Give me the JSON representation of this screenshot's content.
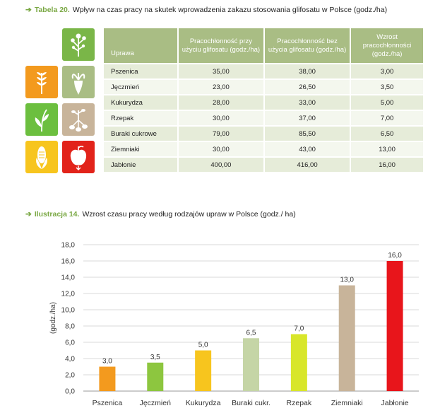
{
  "table_caption": {
    "arrow": "➔",
    "label": "Tabela 20.",
    "text": "Wpływ na czas pracy na skutek wprowadzenia zakazu stosowania glifosatu w Polsce (godz./ha)"
  },
  "table": {
    "headers": [
      "Uprawa",
      "Pracochłonność przy użyciu glifosatu (godz./ha)",
      "Pracochłonność bez użycia glifosatu (godz./ha)",
      "Wzrost pracochłonności (godz./ha)"
    ],
    "rows": [
      [
        "Pszenica",
        "35,00",
        "38,00",
        "3,00"
      ],
      [
        "Jęczmień",
        "23,00",
        "26,50",
        "3,50"
      ],
      [
        "Kukurydza",
        "28,00",
        "33,00",
        "5,00"
      ],
      [
        "Rzepak",
        "30,00",
        "37,00",
        "7,00"
      ],
      [
        "Buraki cukrowe",
        "79,00",
        "85,50",
        "6,50"
      ],
      [
        "Ziemniaki",
        "30,00",
        "43,00",
        "13,00"
      ],
      [
        "Jabłonie",
        "400,00",
        "416,00",
        "16,00"
      ]
    ]
  },
  "icons": [
    {
      "name": "rapeseed-plant-icon",
      "color": "#7ab648"
    },
    {
      "name": "wheat-icon",
      "color": "#f39a1e"
    },
    {
      "name": "sugar-beet-icon",
      "color": "#a9bd84"
    },
    {
      "name": "barley-icon",
      "color": "#6cbf3f"
    },
    {
      "name": "potato-plant-icon",
      "color": "#c8b49a"
    },
    {
      "name": "corn-icon",
      "color": "#f7c51e"
    },
    {
      "name": "apple-icon",
      "color": "#e2231a"
    }
  ],
  "chart_caption": {
    "arrow": "➔",
    "label": "Ilustracja 14.",
    "text": "Wzrost czasu pracy według rodzajów upraw w Polsce (godz./ ha)"
  },
  "chart_data": {
    "type": "bar",
    "categories": [
      "Pszenica",
      "Jęczmień",
      "Kukurydza",
      "Buraki cukr.",
      "Rzepak",
      "Ziemniaki",
      "Jabłonie"
    ],
    "values": [
      3.0,
      3.5,
      5.0,
      6.5,
      7.0,
      13.0,
      16.0
    ],
    "value_labels": [
      "3,0",
      "3,5",
      "5,0",
      "6,5",
      "7,0",
      "13,0",
      "16,0"
    ],
    "colors": [
      "#f39a1e",
      "#8dc63f",
      "#f7c51e",
      "#c5d5a6",
      "#d8e62a",
      "#c8b49a",
      "#e8151b"
    ],
    "ylabel": "(godz./ha)",
    "ylim": [
      0,
      18
    ],
    "yticks": [
      0,
      2,
      4,
      6,
      8,
      10,
      12,
      14,
      16,
      18
    ],
    "ytick_labels": [
      "0,0",
      "2,0",
      "4,0",
      "6,0",
      "8,0",
      "10,0",
      "12,0",
      "14,0",
      "16,0",
      "18,0"
    ],
    "grid": true
  }
}
